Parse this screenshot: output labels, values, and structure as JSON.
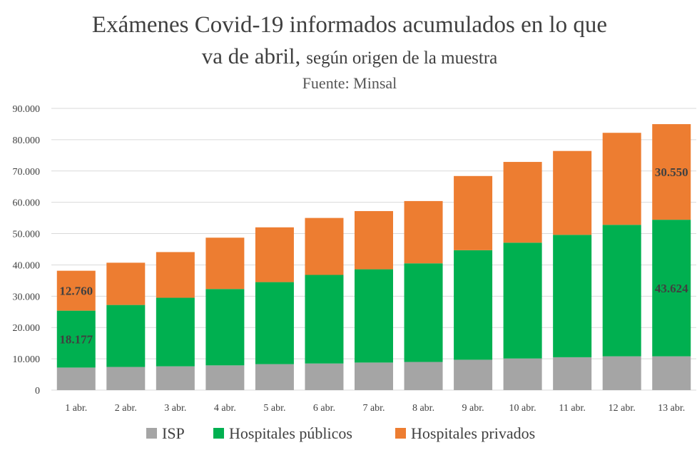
{
  "chart_data": {
    "type": "bar",
    "stacked": true,
    "title_line1": "Exámenes Covid-19 informados acumulados en lo que",
    "title_line2a": "va de abril,",
    "title_line2b": "según origen de la muestra",
    "subtitle": "Fuente: Minsal",
    "categories": [
      "1 abr.",
      "2 abr.",
      "3 abr.",
      "4 abr.",
      "5 abr.",
      "6 abr.",
      "7 abr.",
      "8 abr.",
      "9 abr.",
      "10 abr.",
      "11 abr.",
      "12 abr.",
      "13 abr."
    ],
    "series": [
      {
        "name": "ISP",
        "color": "#a5a5a5",
        "values": [
          7200,
          7400,
          7600,
          7900,
          8300,
          8500,
          8800,
          9000,
          9700,
          10100,
          10500,
          10800,
          10800
        ]
      },
      {
        "name": "Hospitales públicos",
        "color": "#00b050",
        "values": [
          18177,
          19800,
          21900,
          24400,
          26200,
          28300,
          29800,
          31500,
          35000,
          37000,
          39100,
          42000,
          43624
        ]
      },
      {
        "name": "Hospitales privados",
        "color": "#ed7d31",
        "values": [
          12760,
          13500,
          14600,
          16400,
          17500,
          18200,
          18600,
          19900,
          23700,
          25800,
          26800,
          29400,
          30550
        ]
      }
    ],
    "data_labels": [
      {
        "category": "1 abr.",
        "series": "Hospitales privados",
        "text": "12.760"
      },
      {
        "category": "1 abr.",
        "series": "Hospitales públicos",
        "text": "18.177"
      },
      {
        "category": "13 abr.",
        "series": "Hospitales privados",
        "text": "30.550"
      },
      {
        "category": "13 abr.",
        "series": "Hospitales públicos",
        "text": "43.624"
      }
    ],
    "ylim": [
      0,
      90000
    ],
    "yticks": [
      "0",
      "10.000",
      "20.000",
      "30.000",
      "40.000",
      "50.000",
      "60.000",
      "70.000",
      "80.000",
      "90.000"
    ],
    "grid": true,
    "legend_position": "bottom"
  }
}
